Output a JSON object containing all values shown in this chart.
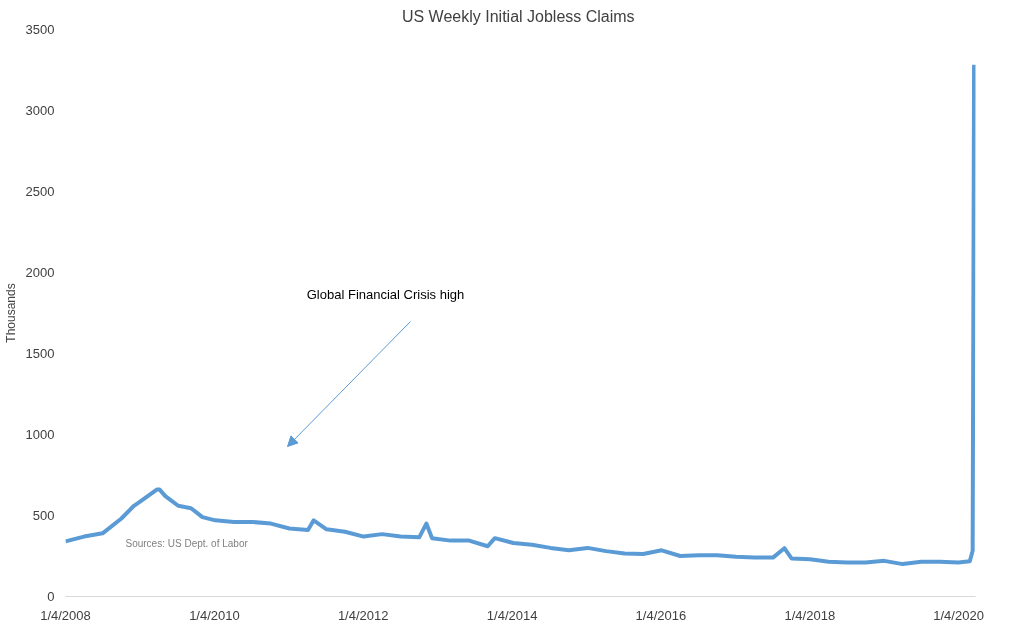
{
  "chart_data": {
    "type": "line",
    "title": "US Weekly  Initial Jobless Claims",
    "ylabel": "Thousands",
    "annotations": [
      "Global Financial Crisis high",
      "Sources: US Dept. of Labor"
    ],
    "x": [
      "2008-01-04",
      "2008-04-04",
      "2008-07-04",
      "2008-10-03",
      "2008-12-05",
      "2009-01-09",
      "2009-03-27",
      "2009-04-10",
      "2009-05-08",
      "2009-07-10",
      "2009-09-11",
      "2009-11-06",
      "2010-01-08",
      "2010-04-09",
      "2010-07-09",
      "2010-10-08",
      "2011-01-07",
      "2011-04-08",
      "2011-05-06",
      "2011-07-08",
      "2011-10-07",
      "2012-01-06",
      "2012-04-06",
      "2012-07-06",
      "2012-10-05",
      "2012-11-09",
      "2012-12-07",
      "2013-03-08",
      "2013-06-07",
      "2013-09-06",
      "2013-10-11",
      "2014-01-10",
      "2014-04-11",
      "2014-07-11",
      "2014-10-10",
      "2015-01-09",
      "2015-04-10",
      "2015-07-10",
      "2015-10-09",
      "2016-01-08",
      "2016-04-08",
      "2016-07-08",
      "2016-10-07",
      "2017-01-06",
      "2017-04-07",
      "2017-07-07",
      "2017-09-01",
      "2017-10-06",
      "2018-01-05",
      "2018-04-06",
      "2018-07-06",
      "2018-10-05",
      "2019-01-04",
      "2019-04-05",
      "2019-07-05",
      "2019-10-04",
      "2020-01-03",
      "2020-02-28",
      "2020-03-13",
      "2020-03-20"
    ],
    "series": [
      {
        "color": "#5b9bd5",
        "values": [
          340,
          370,
          390,
          480,
          560,
          590,
          660,
          660,
          620,
          560,
          545,
          490,
          470,
          460,
          460,
          450,
          420,
          410,
          470,
          415,
          400,
          370,
          385,
          370,
          365,
          450,
          360,
          345,
          345,
          310,
          360,
          330,
          320,
          300,
          285,
          300,
          280,
          265,
          262,
          285,
          250,
          255,
          255,
          245,
          240,
          240,
          298,
          235,
          230,
          215,
          210,
          210,
          220,
          200,
          215,
          215,
          210,
          217,
          282,
          3283
        ]
      }
    ],
    "xlim": [
      "2008-01-04",
      "2020-03-27"
    ],
    "ylim": [
      0,
      3500
    ],
    "xticks": [
      {
        "value": "2008-01-04",
        "label": "1/4/2008"
      },
      {
        "value": "2010-01-04",
        "label": "1/4/2010"
      },
      {
        "value": "2012-01-04",
        "label": "1/4/2012"
      },
      {
        "value": "2014-01-04",
        "label": "1/4/2014"
      },
      {
        "value": "2016-01-04",
        "label": "1/4/2016"
      },
      {
        "value": "2018-01-04",
        "label": "1/4/2018"
      },
      {
        "value": "2020-01-04",
        "label": "1/4/2020"
      }
    ],
    "yticks": [
      0,
      500,
      1000,
      1500,
      2000,
      2500,
      3000,
      3500
    ],
    "grid": false,
    "marker": "none",
    "line_style": "solid"
  }
}
